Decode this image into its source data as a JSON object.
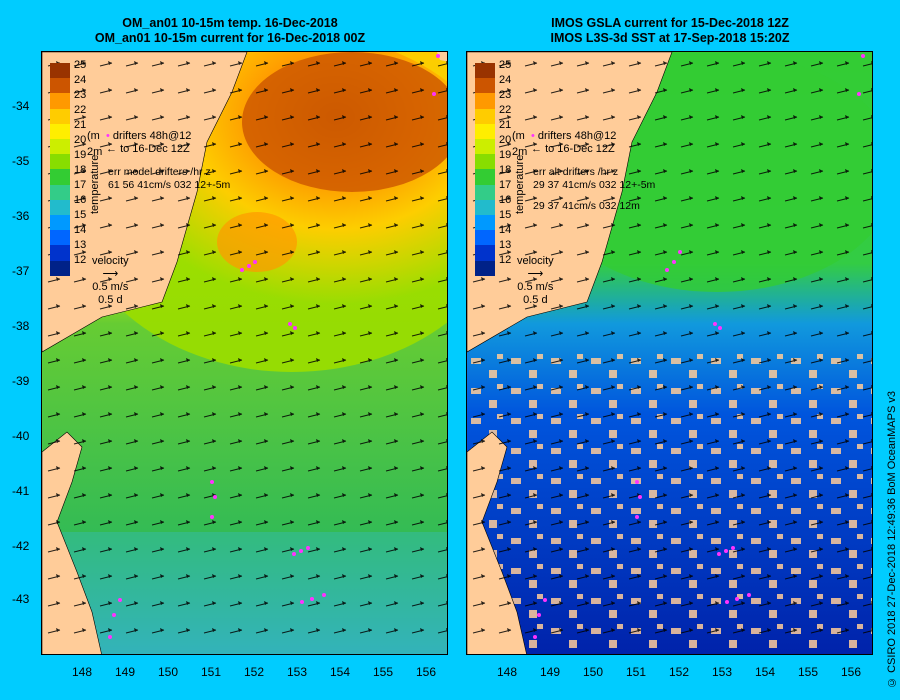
{
  "left_panel": {
    "title_line1": "OM_an01 10-15m temp. 16-Dec-2018",
    "title_line2": "OM_an01 10-15m current for 16-Dec-2018 00Z",
    "legend_line1": "drifters 48h@12",
    "legend_line2": "to 16-Dec 12Z",
    "err_label": "err model drifters /hr z",
    "err_values": "61 56 41cm/s 032 12+-5m",
    "overlay_fragment_1": "(m",
    "overlay_fragment_2": "2m"
  },
  "right_panel": {
    "title_line1": "IMOS GSLA current for 15-Dec-2018 12Z",
    "title_line2": "IMOS L3S-3d SST at 17-Sep-2018 15:20Z",
    "legend_line1": "drifters 48h@12",
    "legend_line2": "to 16-Dec 12Z",
    "err_label": "err alt drifters /hr z",
    "err_values": "29 37 41cm/s 032 12+-5m",
    "err_values_2": "29 37 41cm/s 032 12m",
    "overlay_fragment_1": "(m",
    "overlay_fragment_2": "2m"
  },
  "colorbar": {
    "title": "temperature",
    "labels": [
      "25",
      "24",
      "23",
      "22",
      "21",
      "20",
      "19",
      "18",
      "17",
      "16",
      "15",
      "14",
      "13",
      "12"
    ]
  },
  "velocity_legend": {
    "label": "velocity",
    "speed": "0.5 m/s",
    "time": "0.5 d"
  },
  "x_axis_labels": [
    "148",
    "149",
    "150",
    "151",
    "152",
    "153",
    "154",
    "155",
    "156"
  ],
  "y_axis_labels": [
    "-34",
    "-35",
    "-36",
    "-37",
    "-38",
    "-39",
    "-40",
    "-41",
    "-42",
    "-43"
  ],
  "credit": "© CSIRO 2018  27-Dec-2018 12:49:36 BoM OceanMAPS v3",
  "colors": {
    "background": "#00ccff",
    "land": "#ffcc99",
    "drifters": "#ff33ff"
  }
}
